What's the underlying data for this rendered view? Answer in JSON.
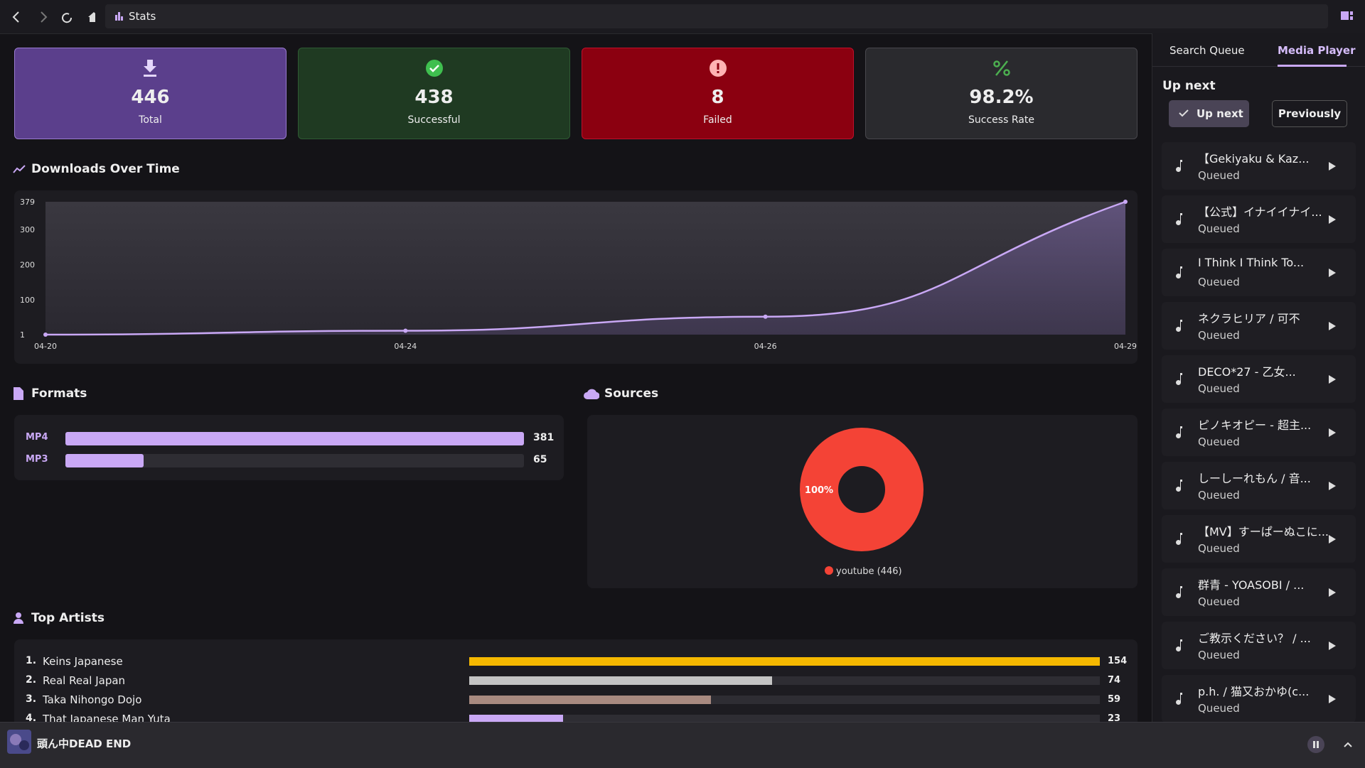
{
  "toolbar": {
    "title": "Stats"
  },
  "stat_cards": [
    {
      "value": 446,
      "label": "Total"
    },
    {
      "value": 438,
      "label": "Successful"
    },
    {
      "value": 8,
      "label": "Failed"
    },
    {
      "value": "98.2%",
      "label": "Success Rate"
    }
  ],
  "downloads_chart": {
    "type": "line",
    "title": "Downloads Over Time",
    "categories": [
      "04-20",
      "04-24",
      "04-26",
      "04-29"
    ],
    "values": [
      1,
      12,
      52,
      379
    ],
    "ylim": [
      1,
      379
    ],
    "yticks": [
      1,
      100,
      200,
      300,
      379
    ],
    "color": "#c9a8f5"
  },
  "formats": {
    "type": "bar",
    "title": "Formats",
    "categories": [
      "MP4",
      "MP3"
    ],
    "values": [
      381,
      65
    ],
    "color": "#c9a8f5"
  },
  "sources": {
    "type": "pie",
    "title": "Sources",
    "categories": [
      "youtube"
    ],
    "values": [
      446
    ],
    "value_labels": [
      "100%"
    ],
    "legend_labels": [
      "youtube (446)"
    ],
    "colors": [
      "#f44336"
    ]
  },
  "top_artists": {
    "type": "bar",
    "title": "Top Artists",
    "ranks": [
      "1.",
      "2.",
      "3.",
      "4."
    ],
    "categories": [
      "Keins Japanese",
      "Real Real Japan",
      "Taka Nihongo Dojo",
      "That Japanese Man Yuta"
    ],
    "values": [
      154,
      74,
      59,
      23
    ],
    "colors": [
      "#f5b800",
      "#c4c4c4",
      "#a88a80",
      "#c9a8f5"
    ]
  },
  "sidebar": {
    "tabs": [
      "Search Queue",
      "Media Player"
    ],
    "heading": "Up next",
    "buttons": [
      "Up next",
      "Previously"
    ],
    "queue": [
      {
        "title": "【Gekiyaku & Kaz...",
        "status": "Queued"
      },
      {
        "title": "【公式】イナイイナイ...",
        "status": "Queued"
      },
      {
        "title": "I Think I Think To...",
        "status": "Queued"
      },
      {
        "title": "ネクラヒリア / 可不",
        "status": "Queued"
      },
      {
        "title": "DECO*27 - 乙女...",
        "status": "Queued"
      },
      {
        "title": "ピノキオピー - 超主...",
        "status": "Queued"
      },
      {
        "title": "しーしーれもん / 音...",
        "status": "Queued"
      },
      {
        "title": "【MV】すーぱーぬこに...",
        "status": "Queued"
      },
      {
        "title": "群青 - YOASOBI / ...",
        "status": "Queued"
      },
      {
        "title": "ご教示ください？ / ...",
        "status": "Queued"
      },
      {
        "title": "p.h. / 猫又おかゆ(c...",
        "status": "Queued"
      }
    ]
  },
  "player": {
    "track": "頭ん中DEAD END"
  }
}
